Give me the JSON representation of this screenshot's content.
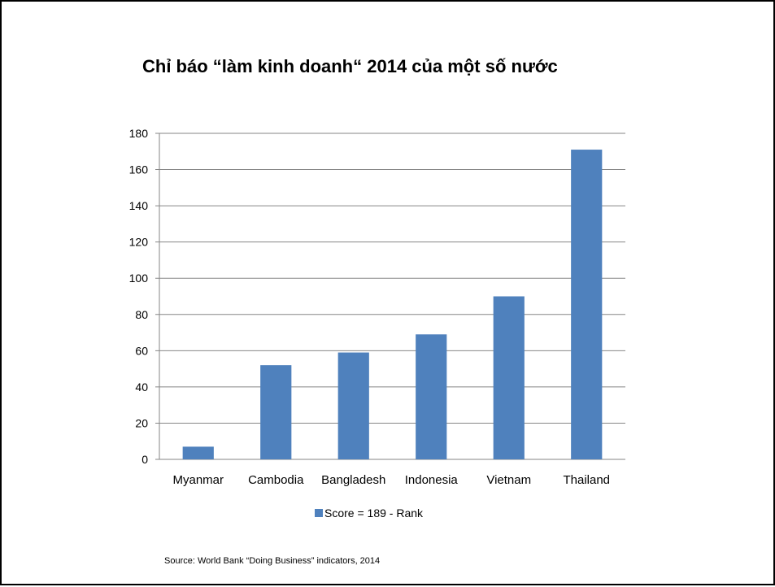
{
  "title": "Chỉ báo “làm kinh doanh“ 2014 của một số nước",
  "source": "Source: World Bank “Doing Business” indicators, 2014",
  "chart_data": {
    "type": "bar",
    "title": "Chỉ báo “làm kinh doanh“ 2014 của một số nước",
    "categories": [
      "Myanmar",
      "Cambodia",
      "Bangladesh",
      "Indonesia",
      "Vietnam",
      "Thailand"
    ],
    "series": [
      {
        "name": "Score = 189 - Rank",
        "values": [
          7,
          52,
          59,
          69,
          90,
          171
        ]
      }
    ],
    "ylim": [
      0,
      180
    ],
    "yticks": [
      0,
      20,
      40,
      60,
      80,
      100,
      120,
      140,
      160,
      180
    ],
    "xlabel": "",
    "ylabel": "",
    "grid": true,
    "legend": "bottom",
    "bar_color": "#4F81BD",
    "grid_color": "#868686"
  }
}
